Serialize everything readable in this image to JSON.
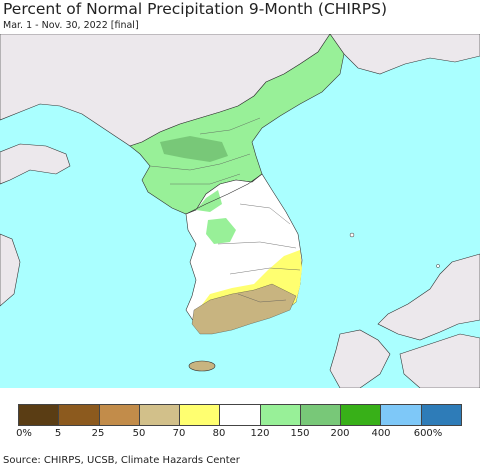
{
  "title": "Percent of Normal Precipitation 9-Month (CHIRPS)",
  "subtitle": "Mar. 1 - Nov. 30, 2022 [final]",
  "source": "Source: CHIRPS, UCSB, Climate Hazards Center",
  "legend": {
    "colors": [
      "#5a3d14",
      "#8c5a1e",
      "#c28c4a",
      "#d2c08a",
      "#ffff70",
      "#ffffff",
      "#98f098",
      "#78c878",
      "#38b018",
      "#7ec8f8",
      "#2e7cb8"
    ],
    "labels": [
      "0%",
      "5",
      "25",
      "50",
      "70",
      "80",
      "120",
      "150",
      "200",
      "400",
      "600%"
    ]
  },
  "map_colors": {
    "sea": "#aaffff",
    "foreign_land": "#ece8ec",
    "near_normal": "#ffffff",
    "wet_150": "#98f098",
    "wet_200": "#78c878",
    "dry_70": "#ffff70",
    "dry_50": "#c8b480"
  }
}
